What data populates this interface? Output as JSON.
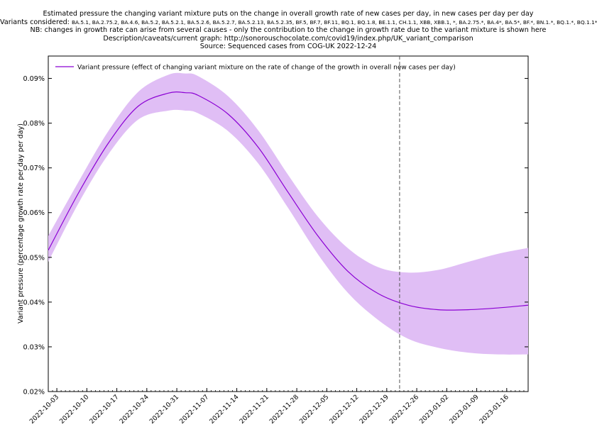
{
  "title_lines": {
    "line1": "Estimated pressure the changing variant mixture puts on the change in overall growth rate of new cases per day, in new cases per day per day",
    "variants_prefix": "Variants considered: ",
    "variants_list": "BA.5.1, BA.2.75.2, BA.4.6, BA.5.2, BA.5.2.1, BA.5.2.6, BA.5.2.7, BA.5.2.13, BA.5.2.35, BF.5, BF.7, BF.11, BQ.1, BQ.1.8, BE.1.1, CH.1.1, XBB, XBB.1, *, BA.2.75.*, BA.4*, BA.5*, BF.*, BN.1.*, BQ.1.*, BQ.1.1*",
    "line3": "NB: changes in growth rate can arise from several causes - only the contribution to the change in growth rate due to the variant mixture is shown here",
    "line4": "Description/caveats/current graph: http://sonorouschocolate.com/covid19/index.php/UK_variant_comparison",
    "line5": "Source: Sequenced cases from COG-UK 2022-12-24"
  },
  "chart_data": {
    "type": "area",
    "title": "Estimated pressure the changing variant mixture puts on the change in overall growth rate of new cases per day, in new cases per day per day",
    "xlabel": "",
    "ylabel": "Variant pressure (percentage growth rate per day per day)",
    "x_start": "2022-10-01",
    "x_end": "2023-01-21",
    "ylim": [
      0.02,
      0.095
    ],
    "y_ticks": [
      0.02,
      0.03,
      0.04,
      0.05,
      0.06,
      0.07,
      0.08,
      0.09
    ],
    "y_tick_labels": [
      "0.02%",
      "0.03%",
      "0.04%",
      "0.05%",
      "0.06%",
      "0.07%",
      "0.08%",
      "0.09%"
    ],
    "x_ticks": [
      "2022-10-03",
      "2022-10-10",
      "2022-10-17",
      "2022-10-24",
      "2022-10-31",
      "2022-11-07",
      "2022-11-14",
      "2022-11-21",
      "2022-11-28",
      "2022-12-05",
      "2022-12-12",
      "2022-12-19",
      "2022-12-26",
      "2023-01-02",
      "2023-01-09",
      "2023-01-16"
    ],
    "grid": false,
    "legend_position": "top-left",
    "vline_date": "2022-12-22",
    "series": [
      {
        "name": "Variant pressure (effect of changing variant mixture on the rate of change of the growth in overall new cases per day)",
        "color": "#8b00d4",
        "band_color": "#e0bef5",
        "x": [
          "2022-10-01",
          "2022-10-08",
          "2022-10-15",
          "2022-10-22",
          "2022-10-29",
          "2022-11-02",
          "2022-11-05",
          "2022-11-12",
          "2022-11-19",
          "2022-11-26",
          "2022-12-03",
          "2022-12-10",
          "2022-12-17",
          "2022-12-24",
          "2022-12-31",
          "2023-01-07",
          "2023-01-14",
          "2023-01-21"
        ],
        "y": [
          0.0516,
          0.0643,
          0.0755,
          0.0838,
          0.0867,
          0.0868,
          0.0862,
          0.082,
          0.0746,
          0.0645,
          0.0547,
          0.0468,
          0.0419,
          0.0393,
          0.0383,
          0.0383,
          0.0387,
          0.0393
        ],
        "lower": [
          0.049,
          0.062,
          0.073,
          0.0808,
          0.0828,
          0.0828,
          0.0822,
          0.0782,
          0.071,
          0.061,
          0.0506,
          0.042,
          0.036,
          0.0318,
          0.0298,
          0.0287,
          0.0283,
          0.0283
        ],
        "upper": [
          0.0548,
          0.0668,
          0.0782,
          0.087,
          0.0908,
          0.0911,
          0.0905,
          0.086,
          0.0784,
          0.0684,
          0.059,
          0.052,
          0.0478,
          0.0466,
          0.0472,
          0.049,
          0.0508,
          0.0521
        ]
      }
    ]
  }
}
